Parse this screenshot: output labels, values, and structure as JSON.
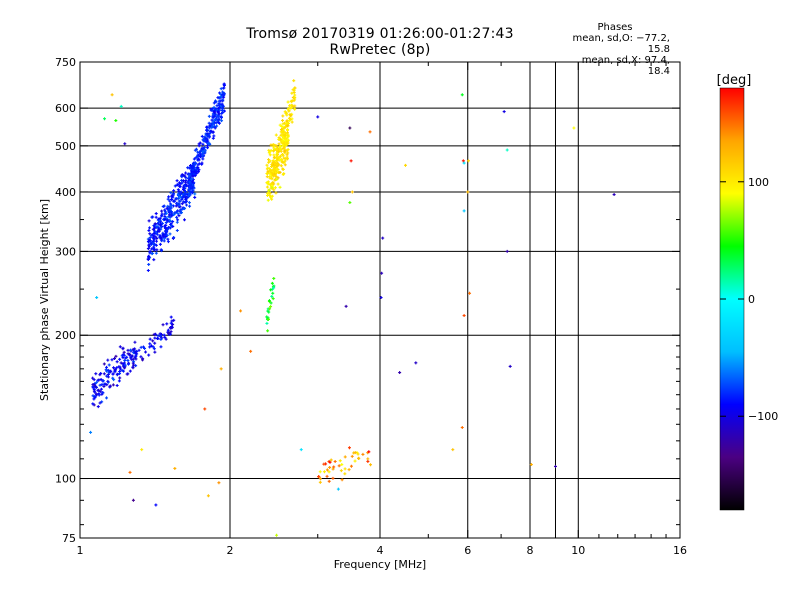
{
  "title_line1": "Tromsø 20170319 01:26:00-01:27:43",
  "title_line2": "RwPretec (8p)",
  "phase_panel": {
    "header": "Phases",
    "line_o": "mean, sd,O: −77.2, 15.8",
    "line_x": "mean, sd,X:  97.4, 18.4"
  },
  "colorbar": {
    "unit_label": "[deg]",
    "tick_labels": [
      "100",
      "0",
      "−100"
    ],
    "tick_values": [
      100,
      0,
      -100
    ],
    "range": [
      -180,
      180
    ],
    "colors": [
      "#000000",
      "#4b0082",
      "#0000ff",
      "#00bfff",
      "#00ffff",
      "#00ff00",
      "#ffff00",
      "#ffa500",
      "#ff0000"
    ]
  },
  "chart_data": {
    "type": "scatter",
    "xlabel": "Frequency [MHz]",
    "ylabel": "Stationary phase Virtual Height [km]",
    "x_scale": "log",
    "y_scale": "log",
    "xlim": [
      1,
      16
    ],
    "ylim": [
      75,
      750
    ],
    "grid": true,
    "x_ticks": [
      1,
      2,
      4,
      6,
      8,
      10,
      16
    ],
    "x_tick_labels": [
      "1",
      "2",
      "4",
      "6",
      "8",
      "10",
      "16"
    ],
    "x_minor_ticks": [
      3,
      5,
      7,
      9,
      11,
      12,
      13,
      14,
      15
    ],
    "x_grid": [
      2,
      4,
      6,
      8,
      9,
      10
    ],
    "y_ticks": [
      75,
      100,
      200,
      300,
      400,
      500,
      600,
      750
    ],
    "y_tick_labels": [
      "75",
      "100",
      "200",
      "300",
      "400",
      "500",
      "600",
      "750"
    ],
    "y_minor_ticks": [
      80,
      90,
      110,
      120,
      130,
      140,
      150,
      160,
      170,
      180,
      190,
      250,
      350
    ],
    "y_grid": [
      100,
      200,
      300,
      400,
      500,
      600
    ],
    "series": [
      {
        "mode": "O",
        "clusters": [
          {
            "f_range": [
              1.37,
              1.7
            ],
            "h_base": [
              305,
              430
            ],
            "h_spread": 0.09,
            "n": 380,
            "phase_mean": -85,
            "phase_sd": 12
          },
          {
            "f_range": [
              1.65,
              1.95
            ],
            "h_base": [
              420,
              640
            ],
            "h_spread": 0.06,
            "n": 260,
            "phase_mean": -82,
            "phase_sd": 10
          },
          {
            "f_range": [
              1.06,
              1.3
            ],
            "h_base": [
              150,
              185
            ],
            "h_spread": 0.07,
            "n": 150,
            "phase_mean": -92,
            "phase_sd": 18
          },
          {
            "f_range": [
              1.25,
              1.55
            ],
            "h_base": [
              175,
              210
            ],
            "h_spread": 0.04,
            "n": 60,
            "phase_mean": -95,
            "phase_sd": 14
          }
        ]
      },
      {
        "mode": "X",
        "clusters": [
          {
            "f_range": [
              2.37,
              2.62
            ],
            "h_base": [
              420,
              520
            ],
            "h_spread": 0.1,
            "n": 260,
            "phase_mean": 103,
            "phase_sd": 12
          },
          {
            "f_range": [
              2.55,
              2.7
            ],
            "h_base": [
              520,
              640
            ],
            "h_spread": 0.06,
            "n": 70,
            "phase_mean": 102,
            "phase_sd": 10
          },
          {
            "f_range": [
              2.37,
              2.45
            ],
            "h_base": [
              215,
              255
            ],
            "h_spread": 0.05,
            "n": 25,
            "phase_mean": 45,
            "phase_sd": 25
          },
          {
            "f_range": [
              3.0,
              3.85
            ],
            "h_base": [
              102,
              112
            ],
            "h_spread": 0.05,
            "n": 45,
            "phase_mean": 140,
            "phase_sd": 40
          }
        ]
      }
    ],
    "scattered_points": [
      {
        "f": 1.05,
        "h": 125,
        "phase": -60
      },
      {
        "f": 1.08,
        "h": 240,
        "phase": -40
      },
      {
        "f": 1.12,
        "h": 570,
        "phase": 30
      },
      {
        "f": 1.16,
        "h": 640,
        "phase": 120
      },
      {
        "f": 1.21,
        "h": 605,
        "phase": 10
      },
      {
        "f": 1.23,
        "h": 505,
        "phase": -110
      },
      {
        "f": 1.18,
        "h": 565,
        "phase": 50
      },
      {
        "f": 1.26,
        "h": 103,
        "phase": 150
      },
      {
        "f": 1.28,
        "h": 90,
        "phase": -130
      },
      {
        "f": 1.33,
        "h": 115,
        "phase": 100
      },
      {
        "f": 1.42,
        "h": 88,
        "phase": -90
      },
      {
        "f": 1.55,
        "h": 105,
        "phase": 130
      },
      {
        "f": 1.81,
        "h": 92,
        "phase": 120
      },
      {
        "f": 1.9,
        "h": 98,
        "phase": 140
      },
      {
        "f": 1.78,
        "h": 140,
        "phase": 160
      },
      {
        "f": 1.92,
        "h": 170,
        "phase": 130
      },
      {
        "f": 2.1,
        "h": 225,
        "phase": 140
      },
      {
        "f": 2.2,
        "h": 185,
        "phase": 150
      },
      {
        "f": 2.48,
        "h": 76,
        "phase": 80
      },
      {
        "f": 2.78,
        "h": 115,
        "phase": -20
      },
      {
        "f": 3.3,
        "h": 95,
        "phase": -40
      },
      {
        "f": 3.42,
        "h": 230,
        "phase": -120
      },
      {
        "f": 3.48,
        "h": 545,
        "phase": -150
      },
      {
        "f": 3.5,
        "h": 465,
        "phase": 175
      },
      {
        "f": 3.52,
        "h": 400,
        "phase": 120
      },
      {
        "f": 3.48,
        "h": 380,
        "phase": 60
      },
      {
        "f": 3.0,
        "h": 575,
        "phase": -100
      },
      {
        "f": 3.82,
        "h": 535,
        "phase": 150
      },
      {
        "f": 4.05,
        "h": 320,
        "phase": -110
      },
      {
        "f": 4.03,
        "h": 270,
        "phase": -115
      },
      {
        "f": 4.02,
        "h": 240,
        "phase": -100
      },
      {
        "f": 4.38,
        "h": 167,
        "phase": -120
      },
      {
        "f": 4.72,
        "h": 175,
        "phase": -110
      },
      {
        "f": 4.5,
        "h": 455,
        "phase": 110
      },
      {
        "f": 5.85,
        "h": 640,
        "phase": 40
      },
      {
        "f": 5.9,
        "h": 365,
        "phase": -40
      },
      {
        "f": 5.9,
        "h": 220,
        "phase": 160
      },
      {
        "f": 6.05,
        "h": 245,
        "phase": 150
      },
      {
        "f": 5.88,
        "h": 465,
        "phase": 175
      },
      {
        "f": 6.02,
        "h": 465,
        "phase": 110
      },
      {
        "f": 5.9,
        "h": 460,
        "phase": -20
      },
      {
        "f": 6.0,
        "h": 400,
        "phase": 125
      },
      {
        "f": 5.85,
        "h": 128,
        "phase": 150
      },
      {
        "f": 7.1,
        "h": 590,
        "phase": -100
      },
      {
        "f": 7.2,
        "h": 490,
        "phase": 10
      },
      {
        "f": 7.2,
        "h": 300,
        "phase": -120
      },
      {
        "f": 7.3,
        "h": 172,
        "phase": -110
      },
      {
        "f": 8.05,
        "h": 107,
        "phase": 130
      },
      {
        "f": 9.0,
        "h": 106,
        "phase": -120
      },
      {
        "f": 9.8,
        "h": 545,
        "phase": 90
      },
      {
        "f": 11.8,
        "h": 395,
        "phase": -115
      },
      {
        "f": 5.6,
        "h": 115,
        "phase": 120
      }
    ]
  }
}
